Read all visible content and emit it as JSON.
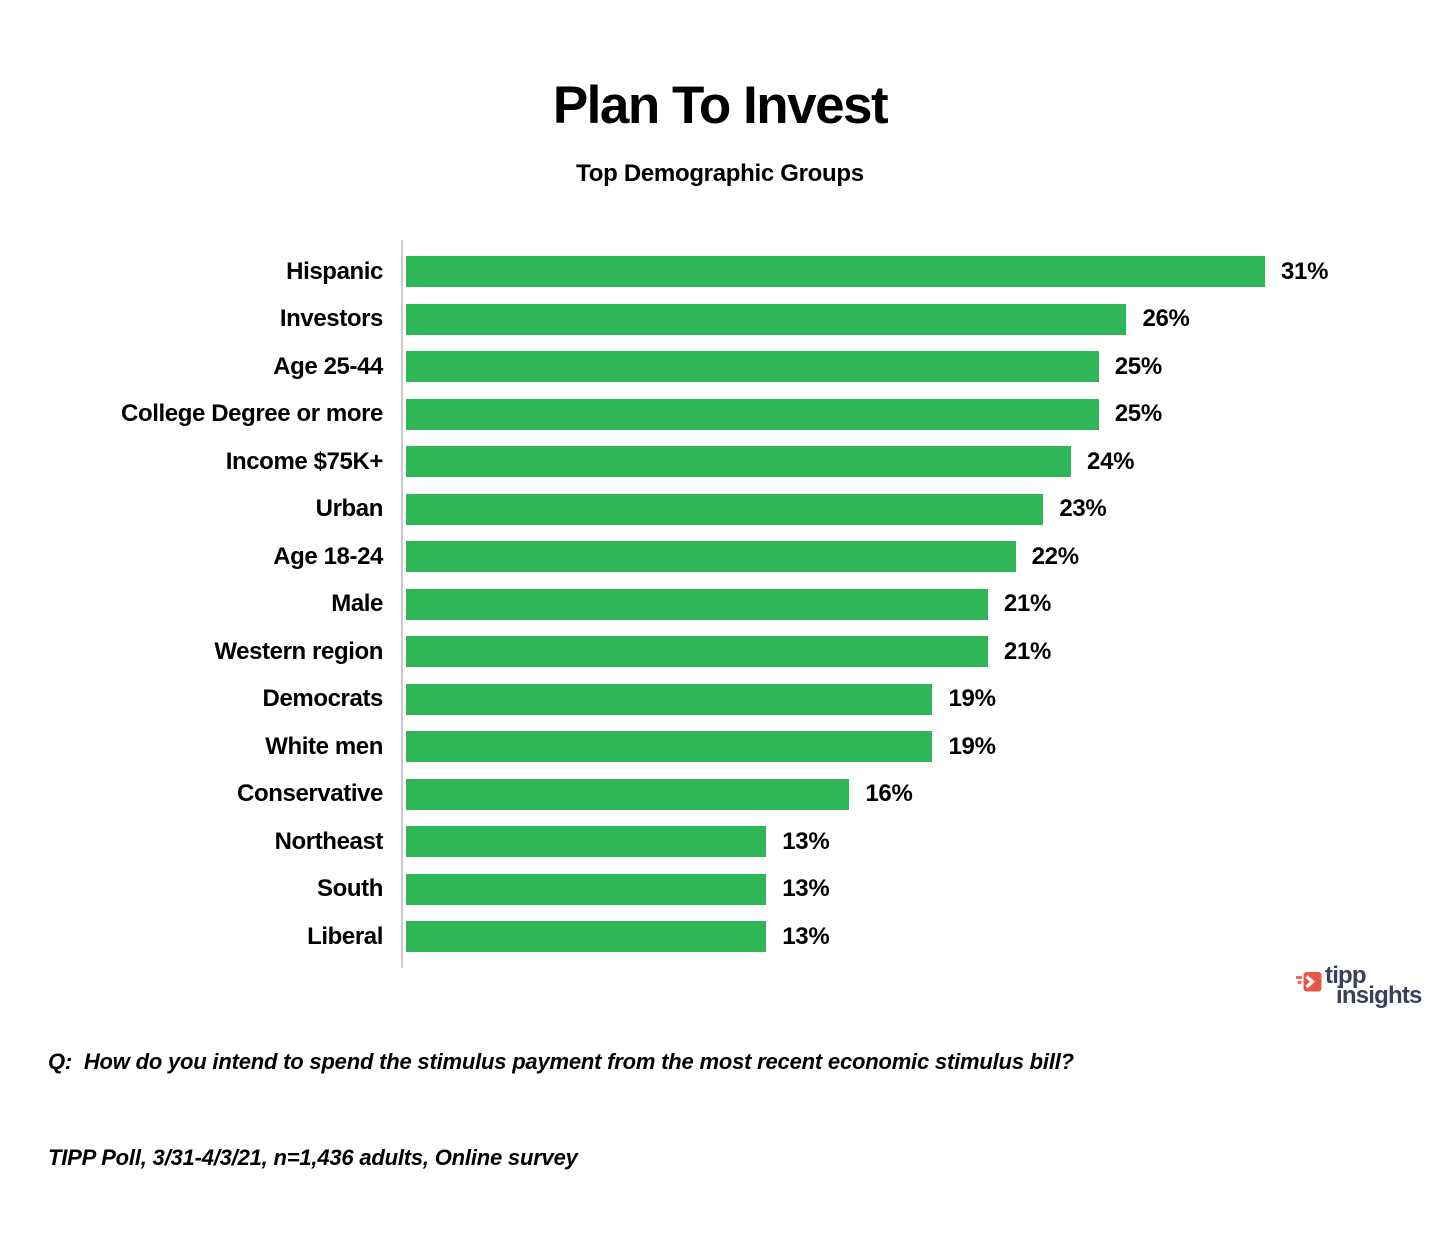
{
  "title": "Plan To Invest",
  "subtitle": "Top Demographic Groups",
  "chart_data": {
    "type": "bar",
    "orientation": "horizontal",
    "title": "Plan To Invest",
    "subtitle": "Top Demographic Groups",
    "categories": [
      "Hispanic",
      "Investors",
      "Age 25-44",
      "College Degree or more",
      "Income $75K+",
      "Urban",
      "Age 18-24",
      "Male",
      "Western region",
      "Democrats",
      "White men",
      "Conservative",
      "Northeast",
      "South",
      "Liberal"
    ],
    "values": [
      31,
      26,
      25,
      25,
      24,
      23,
      22,
      21,
      21,
      19,
      19,
      16,
      13,
      13,
      13
    ],
    "value_suffix": "%",
    "xlim": [
      0,
      31
    ],
    "grid": false,
    "legend": false,
    "value_labels_position": "outside-end",
    "bar_color": "#2fb656",
    "axis_line_color": "#c9c9cf",
    "label_color": "#000000"
  },
  "footer": {
    "question": "Q:  How do you intend to spend the stimulus payment from the most recent economic stimulus bill?",
    "source": "TIPP Poll, 3/31-4/3/21, n=1,436 adults, Online survey"
  },
  "logo": {
    "line1": "tipp",
    "line2": "insights",
    "text_color": "#3b3f5c",
    "icon_color": "#e8554a",
    "icon": "tipp-arrow-icon"
  }
}
